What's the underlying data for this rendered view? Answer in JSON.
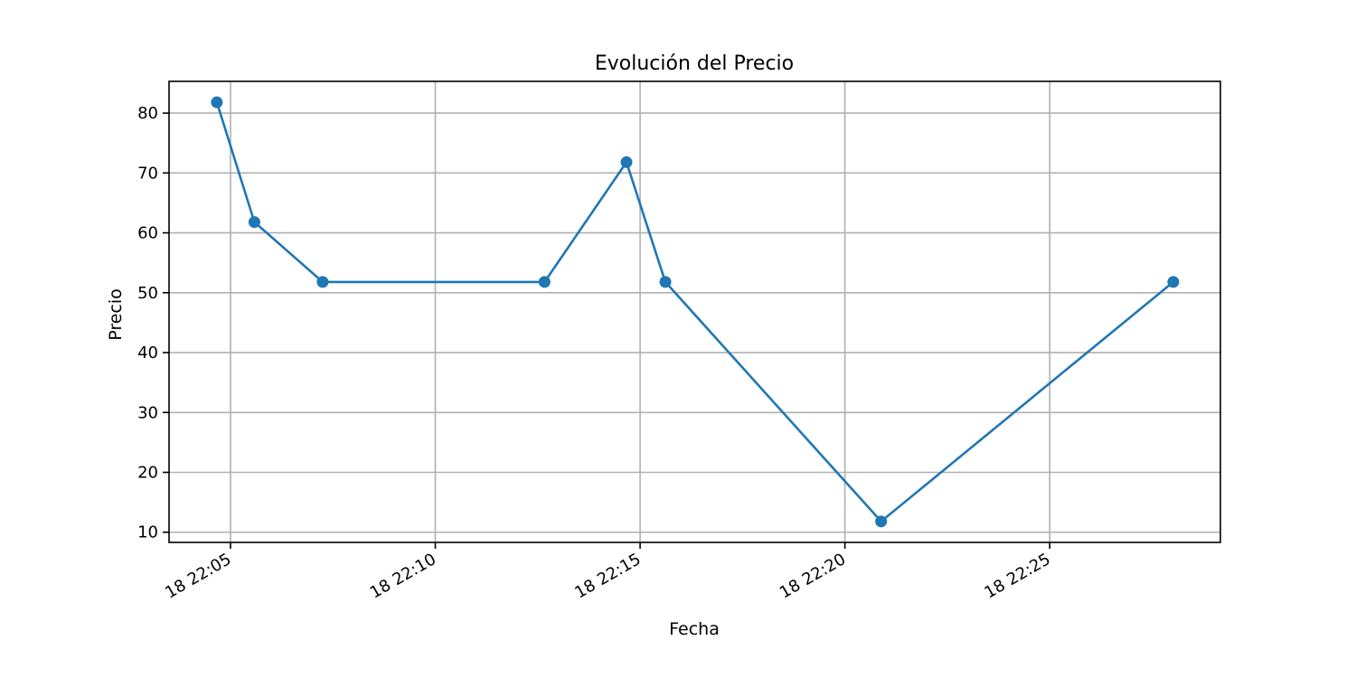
{
  "chart_data": {
    "type": "line",
    "title": "Evolución del Precio",
    "xlabel": "Fecha",
    "ylabel": "Precio",
    "x_axis_type": "time",
    "x_tick_labels": [
      "18 22:05",
      "18 22:10",
      "18 22:15",
      "18 22:20",
      "18 22:25"
    ],
    "x_tick_times": [
      "22:05",
      "22:10",
      "22:15",
      "22:20",
      "22:25"
    ],
    "x_range": [
      "22:03:30",
      "22:29:10"
    ],
    "y_ticks": [
      10,
      20,
      30,
      40,
      50,
      60,
      70,
      80
    ],
    "ylim": [
      8.3,
      85.3
    ],
    "grid": true,
    "line_color": "#1f77b4",
    "marker": "circle",
    "series": [
      {
        "x": [
          "22:04:40",
          "22:05:35",
          "22:07:15",
          "22:12:40",
          "22:14:40",
          "22:15:37",
          "22:20:53",
          "22:28:01"
        ],
        "y": [
          81.8,
          61.8,
          51.8,
          51.8,
          71.8,
          51.8,
          11.8,
          51.8
        ]
      }
    ]
  }
}
